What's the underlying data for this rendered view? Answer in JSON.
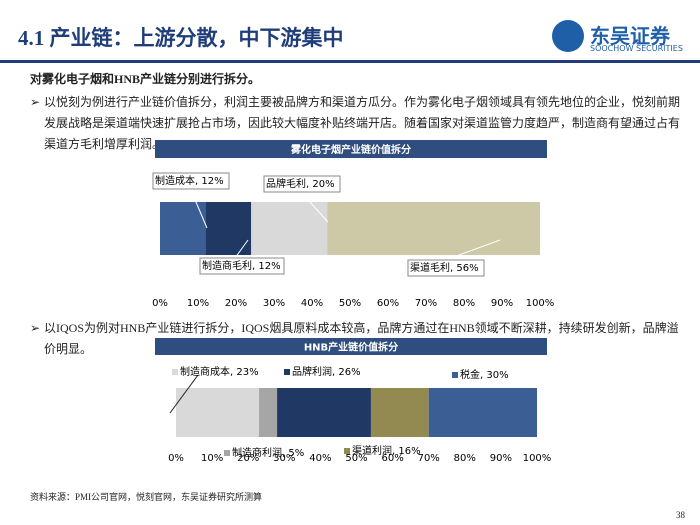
{
  "header": {
    "title": "4.1 产业链：上游分散，中下游集中",
    "logo": "东吴证券",
    "logo_en": "SOOCHOW SECURITIES"
  },
  "intro": "对雾化电子烟和HNB产业链分别进行拆分。",
  "bullets": [
    "以悦刻为例进行产业链价值拆分，利润主要被品牌方和渠道方瓜分。作为雾化电子烟领域具有领先地位的企业，悦刻前期发展战略是渠道端快速扩展抢占市场，因此较大幅度补贴终端开店。随着国家对渠道监管力度趋严，制造商有望通过占有渠道方毛利增厚利润。",
    "以IQOS为例对HNB产业链进行拆分，IQOS烟具原料成本较高，品牌方通过在HNB领域不断深耕，持续研发创新，品牌溢价明显。"
  ],
  "chart_data": [
    {
      "type": "bar",
      "horizontal": true,
      "stacked": true,
      "title": "雾化电子烟产业链价值拆分",
      "xlim": [
        0,
        100
      ],
      "xticks": [
        {
          "value": 0,
          "label": "0%"
        },
        {
          "value": 10,
          "label": "10%"
        },
        {
          "value": 20,
          "label": "20%"
        },
        {
          "value": 30,
          "label": "30%"
        },
        {
          "value": 40,
          "label": "40%"
        },
        {
          "value": 50,
          "label": "50%"
        },
        {
          "value": 60,
          "label": "60%"
        },
        {
          "value": 70,
          "label": "70%"
        },
        {
          "value": 80,
          "label": "80%"
        },
        {
          "value": 90,
          "label": "90%"
        },
        {
          "value": 100,
          "label": "100%"
        }
      ],
      "series": [
        {
          "color": "#3b5e95",
          "values": [
            12
          ],
          "value_labels": [
            "制造成本, 12%"
          ]
        },
        {
          "color": "#1f3864",
          "values": [
            12
          ],
          "value_labels": [
            "制造商毛利, 12%"
          ]
        },
        {
          "color": "#d9d9d9",
          "values": [
            20
          ],
          "value_labels": [
            "品牌毛利, 20%"
          ]
        },
        {
          "color": "#cdc8a6",
          "values": [
            56
          ],
          "value_labels": [
            "渠道毛利, 56%"
          ]
        }
      ]
    },
    {
      "type": "bar",
      "horizontal": true,
      "stacked": true,
      "title": "HNB产业链价值拆分",
      "xlim": [
        0,
        100
      ],
      "xticks": [
        {
          "value": 0,
          "label": "0%"
        },
        {
          "value": 10,
          "label": "10%"
        },
        {
          "value": 20,
          "label": "20%"
        },
        {
          "value": 30,
          "label": "30%"
        },
        {
          "value": 40,
          "label": "40%"
        },
        {
          "value": 50,
          "label": "50%"
        },
        {
          "value": 60,
          "label": "60%"
        },
        {
          "value": 70,
          "label": "70%"
        },
        {
          "value": 80,
          "label": "80%"
        },
        {
          "value": 90,
          "label": "90%"
        },
        {
          "value": 100,
          "label": "100%"
        }
      ],
      "series": [
        {
          "color": "#d9d9d9",
          "values": [
            23
          ],
          "value_labels": [
            "制造商成本, 23%"
          ]
        },
        {
          "color": "#a6a6a6",
          "values": [
            5
          ],
          "value_labels": [
            "制造商利润, 5%"
          ]
        },
        {
          "color": "#1f3864",
          "values": [
            26
          ],
          "value_labels": [
            "品牌利润, 26%"
          ]
        },
        {
          "color": "#938a52",
          "values": [
            16
          ],
          "value_labels": [
            "渠道利润, 16%"
          ]
        },
        {
          "color": "#3b5e95",
          "values": [
            30
          ],
          "value_labels": [
            "税金, 30%"
          ]
        }
      ]
    }
  ],
  "source": "资料来源：PMI公司官网，悦刻官网，东吴证券研究所测算",
  "page_number": "38"
}
